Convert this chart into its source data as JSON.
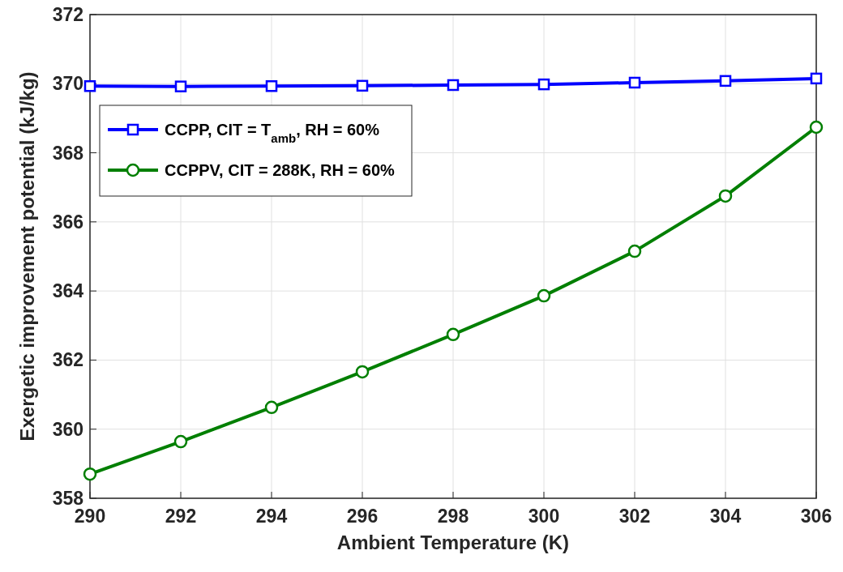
{
  "chart_data": {
    "type": "line",
    "xlabel": "Ambient Temperature (K)",
    "ylabel": "Exergetic improvement potential (kJ/kg)",
    "x": [
      290,
      292,
      294,
      296,
      298,
      300,
      302,
      304,
      306
    ],
    "series": [
      {
        "name": "CCPP, CIT = T$_{amb}$, RH = 60%",
        "color": "#0000ff",
        "marker": "square",
        "values": [
          369.93,
          369.92,
          369.93,
          369.94,
          369.96,
          369.98,
          370.03,
          370.08,
          370.15
        ]
      },
      {
        "name": "CCPPV, CIT = 288K, RH = 60%",
        "color": "#007f00",
        "marker": "circle",
        "values": [
          358.7,
          359.64,
          360.63,
          361.66,
          362.74,
          363.86,
          365.15,
          366.75,
          368.74
        ]
      }
    ],
    "xlim": [
      290,
      306
    ],
    "xticks": [
      290,
      292,
      294,
      296,
      298,
      300,
      302,
      304,
      306
    ],
    "ylim": [
      358,
      372
    ],
    "yticks": [
      358,
      360,
      362,
      364,
      366,
      368,
      370,
      372
    ],
    "grid": true,
    "legend": "top left",
    "line_style": "solid"
  }
}
